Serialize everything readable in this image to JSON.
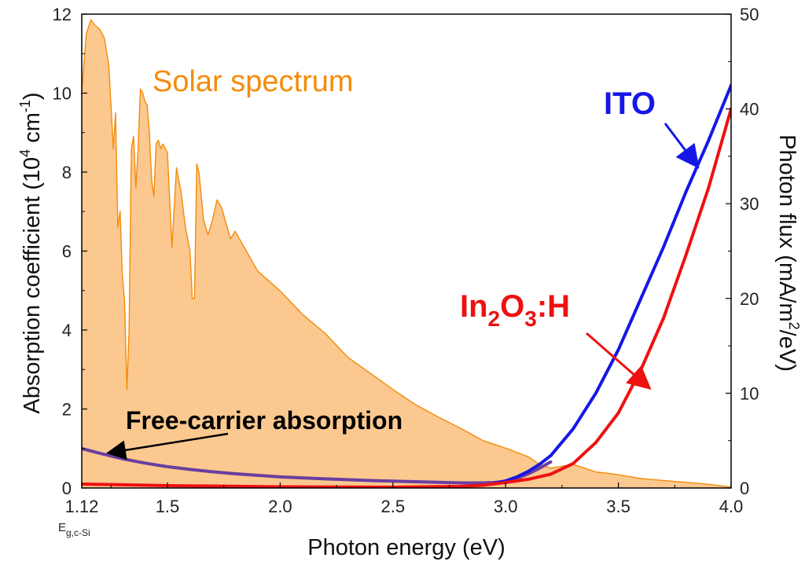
{
  "chart_data": {
    "type": "line",
    "xlabel": "Photon energy (eV)",
    "ylabel_left": "Absorption coefficient (10^4 cm^-1)",
    "ylabel_right": "Photon flux (mA/m^2/eV)",
    "xlim": [
      1.12,
      4.0
    ],
    "ylim_left": [
      0,
      12
    ],
    "ylim_right": [
      0,
      50
    ],
    "x_ticks": [
      "1.12",
      "1.5",
      "2.0",
      "2.5",
      "3.0",
      "3.5",
      "4.0"
    ],
    "x_tick_values": [
      1.12,
      1.5,
      2.0,
      2.5,
      3.0,
      3.5,
      4.0
    ],
    "y_left_ticks": [
      "0",
      "2",
      "4",
      "6",
      "8",
      "10",
      "12"
    ],
    "y_right_ticks": [
      "0",
      "10",
      "20",
      "30",
      "40",
      "50"
    ],
    "eg_label": "E_g,c-Si",
    "grid": false,
    "series": [
      {
        "name": "Solar spectrum",
        "axis": "right",
        "style": "filled-area",
        "color": "#f58b0a",
        "fill": "#fbc88f",
        "x": [
          1.12,
          1.14,
          1.16,
          1.18,
          1.2,
          1.22,
          1.24,
          1.26,
          1.27,
          1.28,
          1.29,
          1.3,
          1.31,
          1.32,
          1.33,
          1.34,
          1.35,
          1.36,
          1.37,
          1.38,
          1.39,
          1.4,
          1.41,
          1.42,
          1.43,
          1.44,
          1.45,
          1.46,
          1.47,
          1.48,
          1.5,
          1.52,
          1.54,
          1.56,
          1.58,
          1.6,
          1.61,
          1.62,
          1.63,
          1.64,
          1.66,
          1.68,
          1.7,
          1.72,
          1.74,
          1.76,
          1.78,
          1.8,
          1.85,
          1.9,
          2.0,
          2.1,
          2.2,
          2.3,
          2.4,
          2.5,
          2.6,
          2.7,
          2.8,
          2.9,
          3.0,
          3.1,
          3.15,
          3.2,
          3.25,
          3.3,
          3.35,
          3.4,
          3.5,
          3.6,
          3.7,
          3.8,
          3.9,
          4.0
        ],
        "y": [
          41.7,
          47.9,
          49.4,
          48.8,
          48.4,
          47.5,
          44.6,
          35.8,
          39.6,
          27.5,
          29.2,
          22.5,
          19.6,
          10.4,
          16.7,
          35.8,
          37.1,
          31.7,
          35.8,
          42.1,
          41.7,
          40.8,
          40.4,
          37.5,
          32.5,
          30.8,
          36.3,
          36.7,
          35.8,
          36.3,
          35.4,
          25.4,
          33.8,
          31.3,
          27.5,
          25.0,
          20.0,
          20.0,
          34.2,
          33.3,
          28.3,
          26.7,
          28.3,
          30.4,
          29.6,
          27.9,
          26.3,
          27.1,
          25.0,
          22.9,
          20.8,
          18.3,
          16.3,
          13.8,
          12.1,
          10.4,
          8.8,
          7.5,
          6.3,
          5.0,
          4.2,
          3.3,
          2.5,
          2.1,
          2.3,
          2.5,
          2.1,
          1.7,
          1.4,
          1.0,
          0.8,
          0.6,
          0.4,
          0.1
        ]
      },
      {
        "name": "ITO",
        "axis": "left",
        "color": "#1616e8",
        "x": [
          2.95,
          3.0,
          3.05,
          3.1,
          3.15,
          3.2,
          3.3,
          3.4,
          3.5,
          3.6,
          3.7,
          3.8,
          3.9,
          4.0
        ],
        "y": [
          0.12,
          0.18,
          0.28,
          0.42,
          0.6,
          0.82,
          1.5,
          2.4,
          3.5,
          4.8,
          6.1,
          7.5,
          8.8,
          10.2
        ]
      },
      {
        "name": "In2O3:H",
        "axis": "left",
        "color": "#ee1111",
        "x": [
          1.12,
          1.5,
          2.0,
          2.5,
          2.8,
          2.9,
          3.0,
          3.1,
          3.2,
          3.3,
          3.4,
          3.5,
          3.6,
          3.7,
          3.8,
          3.9,
          4.0
        ],
        "y": [
          0.1,
          0.06,
          0.03,
          0.02,
          0.04,
          0.07,
          0.14,
          0.22,
          0.35,
          0.62,
          1.15,
          1.9,
          3.0,
          4.3,
          5.9,
          7.6,
          9.6
        ]
      },
      {
        "name": "Free-carrier absorption",
        "axis": "left",
        "color": "#6a3ea0",
        "x": [
          1.12,
          1.2,
          1.3,
          1.4,
          1.5,
          1.6,
          1.7,
          1.8,
          1.9,
          2.0,
          2.2,
          2.4,
          2.6,
          2.8,
          2.9,
          2.95,
          3.0,
          3.05,
          3.1,
          3.15,
          3.2
        ],
        "y": [
          1.0,
          0.88,
          0.74,
          0.63,
          0.54,
          0.47,
          0.41,
          0.36,
          0.32,
          0.28,
          0.23,
          0.19,
          0.16,
          0.13,
          0.13,
          0.14,
          0.17,
          0.24,
          0.36,
          0.5,
          0.66
        ]
      }
    ]
  },
  "annotations": {
    "solar_label": "Solar spectrum",
    "ito_label": "ITO",
    "ino_label_main": "In",
    "ino_sub1": "2",
    "ino_mid": "O",
    "ino_sub2": "3",
    "ino_tail": ":H",
    "fca_label": "Free-carrier absorption"
  },
  "axis_text": {
    "x_title": "Photon energy (eV)",
    "y_left_main": "Absorption coefficient (10",
    "y_left_sup1": "4",
    "y_left_mid": " cm",
    "y_left_sup2": "-1",
    "y_left_tail": ")",
    "y_right_main": "Photon flux (mA/m",
    "y_right_sup": "2",
    "y_right_tail": "/eV)",
    "eg_main": "E",
    "eg_sub": "g,c-Si"
  }
}
